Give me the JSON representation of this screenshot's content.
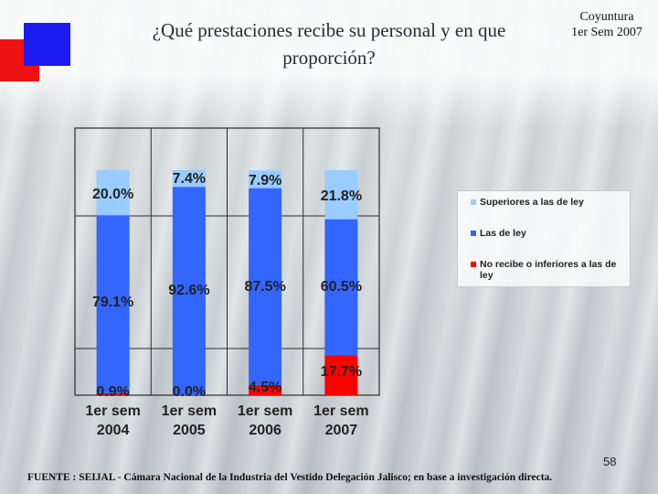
{
  "title": "¿Qué prestaciones recibe su personal y en que proporción?",
  "period": {
    "line1": "Coyuntura",
    "line2": "1er Sem 2007"
  },
  "chart_data": {
    "type": "bar",
    "stacked": true,
    "percent_stacked": true,
    "categories": [
      "1er sem 2004",
      "1er sem 2005",
      "1er sem 2006",
      "1er sem 2007"
    ],
    "series": [
      {
        "name": "No recibe o inferiores a las de ley",
        "color": "#ff0000",
        "values": [
          0.9,
          0.0,
          4.5,
          17.7
        ],
        "labels": [
          "0.9%",
          "0.0%",
          "4.5%",
          "17.7%"
        ]
      },
      {
        "name": "Las de ley",
        "color": "#3366ff",
        "values": [
          79.1,
          92.6,
          87.5,
          60.5
        ],
        "labels": [
          "79.1%",
          "92.6%",
          "87.5%",
          "60.5%"
        ]
      },
      {
        "name": "Superiores a las de ley",
        "color": "#99ccff",
        "values": [
          20.0,
          7.4,
          7.9,
          21.8
        ],
        "labels": [
          "20.0%",
          "7.4%",
          "7.9%",
          "21.8%"
        ]
      }
    ],
    "ylim": [
      0,
      100
    ],
    "grid": true,
    "legend_position": "right"
  },
  "legend": {
    "items": [
      {
        "label": "Superiores a las de ley",
        "color": "#99ccff"
      },
      {
        "label": "Las de ley",
        "color": "#3366ff"
      },
      {
        "label": "No recibe o inferiores a las de ley",
        "color": "#ff0000"
      }
    ]
  },
  "footer": {
    "page_number": "58",
    "source": "FUENTE : SEIJAL - Cámara Nacional de la Industria del Vestido Delegación Jalisco; en base a investigación directa."
  }
}
